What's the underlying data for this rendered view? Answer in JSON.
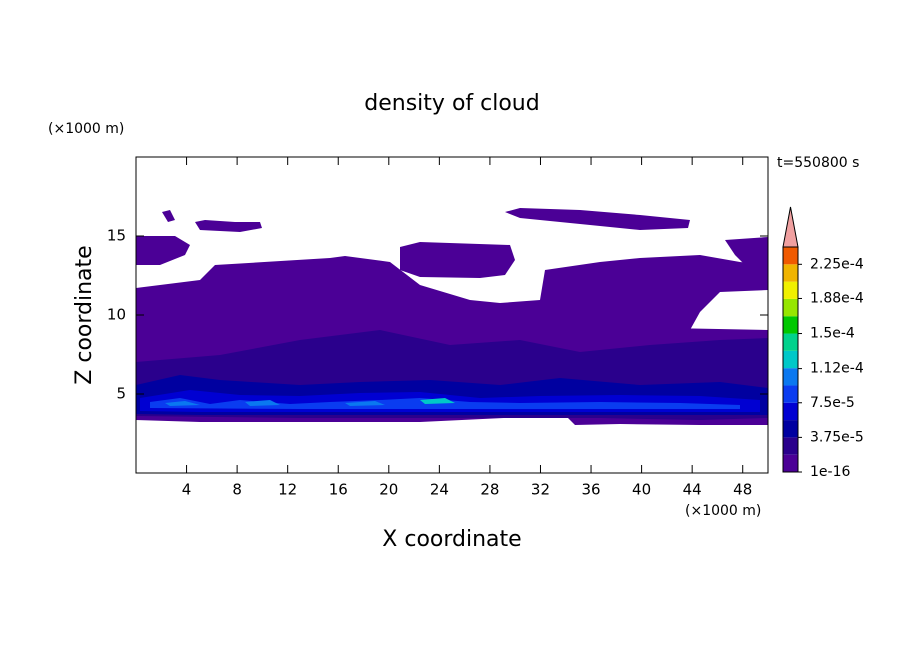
{
  "chart_data": {
    "type": "contour",
    "title": "density of cloud",
    "x_label": "X coordinate",
    "y_label": "Z coordinate",
    "x_unit": "(×1000 m)",
    "y_unit": "(×1000 m)",
    "annotation": "t=550800 s",
    "xlim": [
      0,
      50
    ],
    "xticks": [
      4,
      8,
      12,
      16,
      20,
      24,
      28,
      32,
      36,
      40,
      44,
      48
    ],
    "ylim": [
      0,
      20
    ],
    "yticks": [
      5,
      10,
      15
    ],
    "colorbar": {
      "levels": [
        1e-16,
        1.875e-05,
        3.75e-05,
        5.625e-05,
        7.5e-05,
        9.375e-05,
        0.0001125,
        0.00013125,
        0.00015,
        0.00016875,
        0.0001875,
        0.00020625,
        0.000225,
        0.00024375
      ],
      "colors": [
        "#4b0096",
        "#2a008c",
        "#0000a0",
        "#0000d2",
        "#0a3cf0",
        "#0a78f0",
        "#00c8c8",
        "#00d28c",
        "#00c800",
        "#96e600",
        "#f0f000",
        "#f0b400",
        "#f05a00"
      ],
      "over_color": "#f0a0a0",
      "ticks": [
        1e-16,
        {
          "value": 3.75e-05,
          "label": "3.75e-5"
        },
        {
          "value": 7.5e-05,
          "label": "7.5e-5"
        },
        {
          "value": 0.000112,
          "label": "1.12e-4"
        },
        {
          "value": 0.00015,
          "label": "1.5e-4"
        },
        {
          "value": 0.000188,
          "label": "1.88e-4"
        },
        {
          "value": 0.000225,
          "label": "2.25e-4"
        }
      ]
    }
  }
}
